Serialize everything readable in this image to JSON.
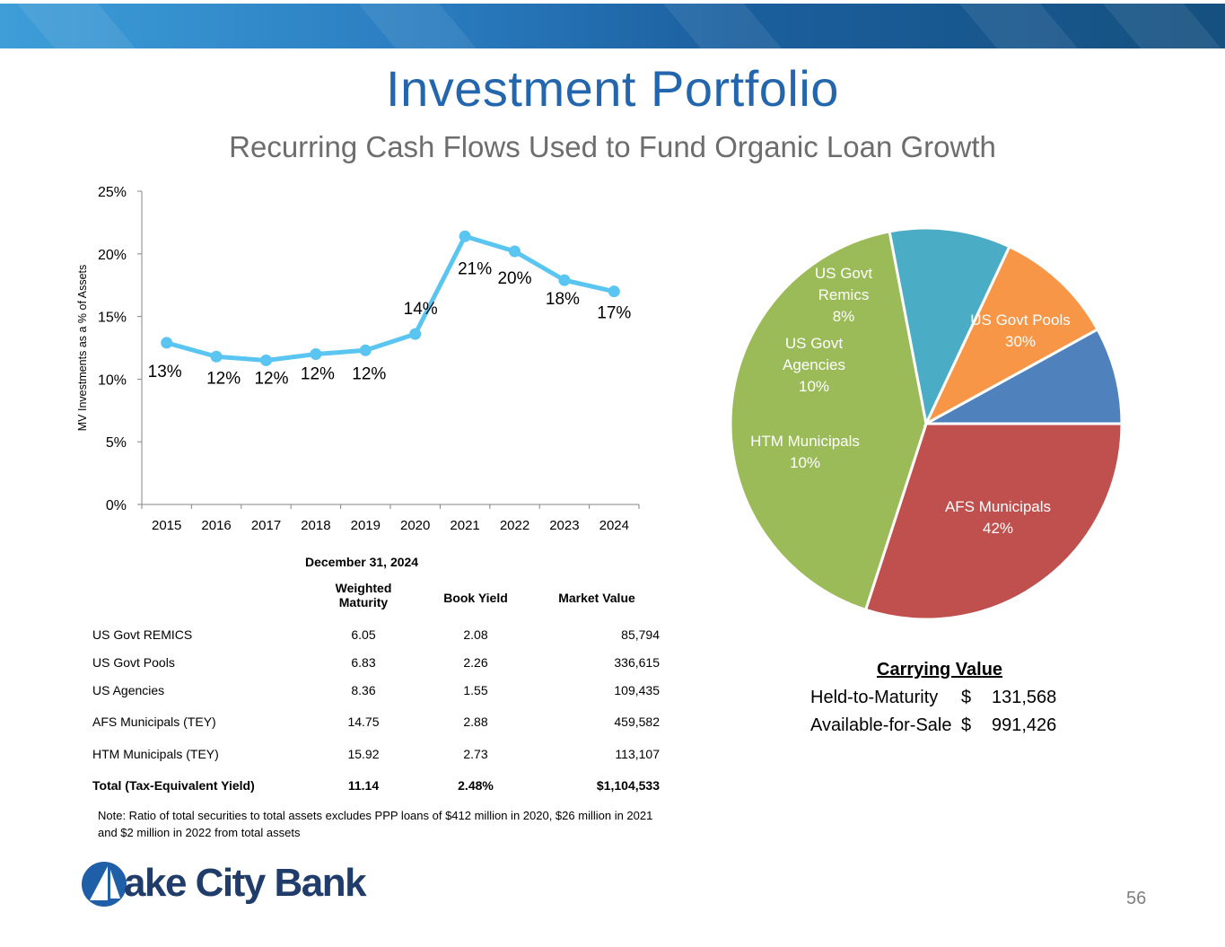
{
  "header": {
    "title": "Investment Portfolio",
    "subtitle": "Recurring Cash Flows Used to Fund Organic Loan Growth"
  },
  "chart_data": [
    {
      "type": "line",
      "x": [
        "2015",
        "2016",
        "2017",
        "2018",
        "2019",
        "2020",
        "2021",
        "2022",
        "2023",
        "2024"
      ],
      "values": [
        12.9,
        11.8,
        11.5,
        12.0,
        12.3,
        13.6,
        21.4,
        20.2,
        17.9,
        17.0
      ],
      "data_labels": [
        "13%",
        "12%",
        "12%",
        "12%",
        "12%",
        "14%",
        "21%",
        "20%",
        "18%",
        "17%"
      ],
      "ylabel": "MV Investments as a % of Assets",
      "ylim": [
        0,
        25
      ],
      "yticks": [
        "0%",
        "5%",
        "10%",
        "15%",
        "20%",
        "25%"
      ],
      "yticks_values": [
        0,
        5,
        10,
        15,
        20,
        25
      ],
      "color": "#5bc5f2",
      "grid": false
    },
    {
      "type": "pie",
      "slices": [
        {
          "label_lines": [
            "US Govt Pools",
            "30%"
          ],
          "value": 30,
          "color": "#c0504d"
        },
        {
          "label_lines": [
            "AFS Municipals",
            "42%"
          ],
          "value": 42,
          "color": "#9bbb59"
        },
        {
          "label_lines": [
            "HTM Municipals",
            "10%"
          ],
          "value": 10,
          "color": "#4bacc6"
        },
        {
          "label_lines": [
            "US Govt",
            "Agencies",
            "10%"
          ],
          "value": 10,
          "color": "#f79646"
        },
        {
          "label_lines": [
            "US Govt",
            "Remics",
            "8%"
          ],
          "value": 8,
          "color": "#4f81bd"
        }
      ]
    }
  ],
  "table": {
    "date": "December 31, 2024",
    "headers": {
      "wm_line1": "Weighted",
      "wm_line2": "Maturity",
      "by": "Book Yield",
      "mv": "Market Value"
    },
    "rows": [
      {
        "name": "US Govt REMICS",
        "wm": "6.05",
        "by": "2.08",
        "mv": "85,794"
      },
      {
        "name": "US Govt Pools",
        "wm": "6.83",
        "by": "2.26",
        "mv": "336,615"
      },
      {
        "name": "US Agencies",
        "wm": "8.36",
        "by": "1.55",
        "mv": "109,435"
      },
      {
        "name": "AFS Municipals (TEY)",
        "wm": "14.75",
        "by": "2.88",
        "mv": "459,582"
      },
      {
        "name": "HTM Municipals (TEY)",
        "wm": "15.92",
        "by": "2.73",
        "mv": "113,107"
      }
    ],
    "total": {
      "name": "Total (Tax-Equivalent Yield)",
      "wm": "11.14",
      "by": "2.48%",
      "mv": "$1,104,533"
    }
  },
  "note": "Note:  Ratio of total securities to total assets excludes PPP loans of $412 million in 2020, $26 million in 2021 and $2 million in 2022 from total assets",
  "carrying": {
    "title": "Carrying Value",
    "rows": [
      {
        "label": "Held-to-Maturity",
        "currency": "$",
        "value": "131,568"
      },
      {
        "label": "Available-for-Sale",
        "currency": "$",
        "value": "991,426"
      }
    ]
  },
  "logo": {
    "text": "ake City Bank"
  },
  "page_number": "56"
}
